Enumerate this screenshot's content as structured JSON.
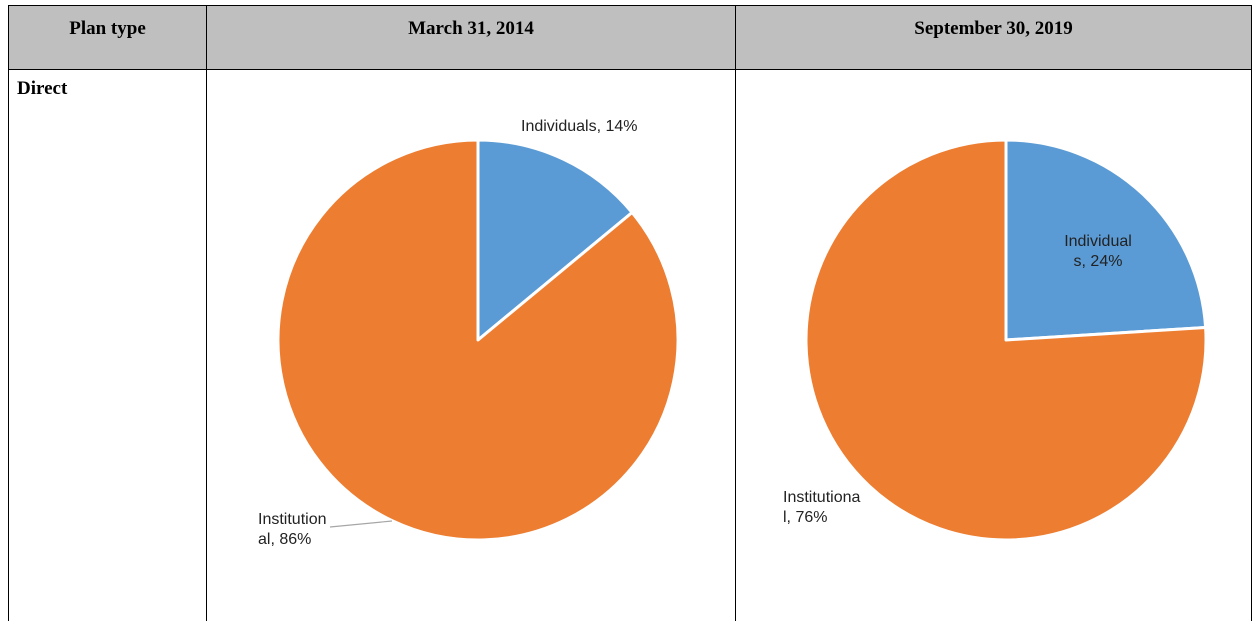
{
  "table": {
    "header": [
      "Plan type",
      "March 31, 2014",
      "September 30, 2019"
    ],
    "rows": [
      [
        "Direct"
      ]
    ]
  },
  "chart_data": [
    {
      "type": "pie",
      "values": [
        14,
        86
      ],
      "value_labels": [
        "Individuals, 14%",
        "Institutional, 86%"
      ],
      "colors": [
        "#5b9bd5",
        "#ed7d31"
      ]
    },
    {
      "type": "pie",
      "values": [
        24,
        76
      ],
      "value_labels": [
        "Individuals, 24%",
        "Institutional, 76%"
      ],
      "colors": [
        "#5b9bd5",
        "#ed7d31"
      ]
    }
  ]
}
